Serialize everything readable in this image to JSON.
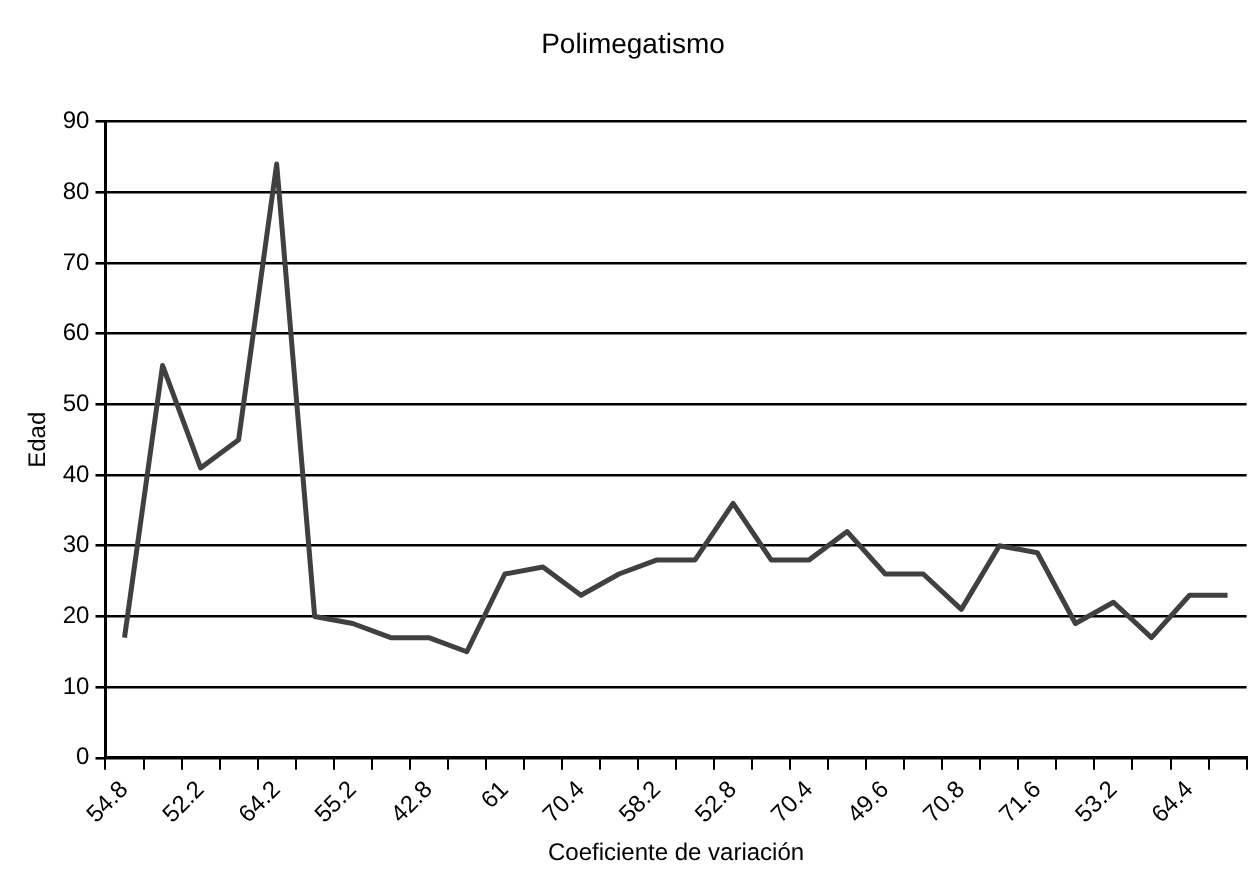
{
  "chart_data": {
    "type": "line",
    "title": "Polimegatismo",
    "xlabel": "Coeficiente de variación",
    "ylabel": "Edad",
    "categories": [
      "54.8",
      null,
      "52.2",
      null,
      "64.2",
      null,
      "55.2",
      null,
      "42.8",
      null,
      "61",
      null,
      "70.4",
      null,
      "58.2",
      null,
      "52.8",
      null,
      "70.4",
      null,
      "49.6",
      null,
      "70.8",
      null,
      "71.6",
      null,
      "53.2",
      null,
      "64.4",
      null
    ],
    "series": [
      {
        "color": "#404040",
        "values": [
          17,
          55.5,
          41,
          45,
          84,
          20,
          19,
          17,
          17,
          15,
          26,
          27,
          23,
          26,
          28,
          28,
          36,
          28,
          28,
          32,
          26,
          26,
          21,
          30,
          29,
          19,
          22,
          17,
          23,
          23
        ]
      }
    ],
    "ylim": [
      0,
      90
    ],
    "yticks": [
      0,
      10,
      20,
      30,
      40,
      50,
      60,
      70,
      80,
      90
    ],
    "grid": "y",
    "legend": false
  }
}
